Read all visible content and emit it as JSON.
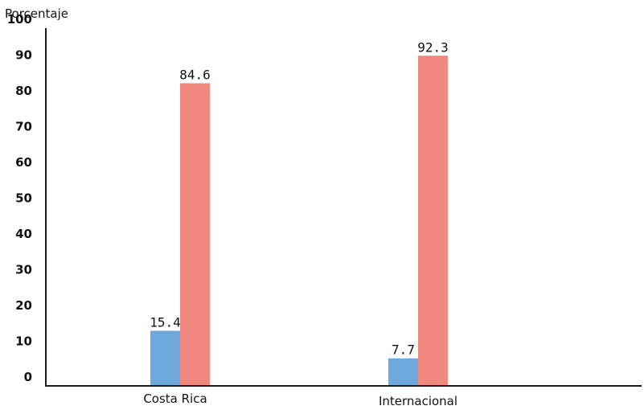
{
  "chart_data": {
    "type": "bar",
    "title": "",
    "ylabel": "Porcentaje",
    "xlabel": "",
    "categories": [
      "Costa Rica",
      "Internacional"
    ],
    "series": [
      {
        "color": "#6fa8dc",
        "values": [
          15.4,
          7.7
        ]
      },
      {
        "color": "#f08880",
        "values": [
          84.6,
          92.3
        ]
      }
    ],
    "ylim": [
      0,
      100
    ],
    "yticks": [
      0,
      10,
      20,
      30,
      40,
      50,
      60,
      70,
      80,
      90,
      100
    ],
    "data_labels": [
      [
        "15.4",
        "7.7"
      ],
      [
        "84.6",
        "92.3"
      ]
    ],
    "grid": false,
    "legend": "none"
  }
}
